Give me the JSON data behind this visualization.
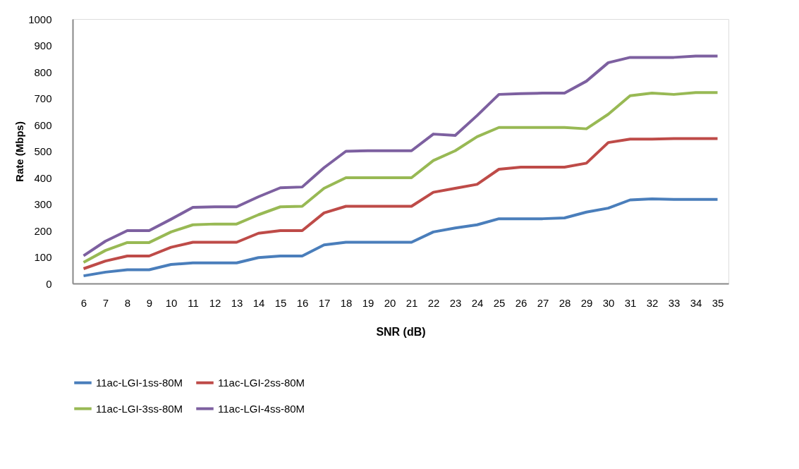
{
  "chart_data": {
    "type": "line",
    "xlabel": "SNR (dB)",
    "ylabel": "Rate (Mbps)",
    "categories": [
      "6",
      "7",
      "8",
      "9",
      "10",
      "11",
      "12",
      "13",
      "14",
      "15",
      "16",
      "17",
      "18",
      "19",
      "20",
      "21",
      "22",
      "23",
      "24",
      "25",
      "26",
      "27",
      "28",
      "29",
      "30",
      "31",
      "32",
      "33",
      "34",
      "35"
    ],
    "ylim": [
      0,
      1000
    ],
    "yticks": [
      0,
      100,
      200,
      300,
      400,
      500,
      600,
      700,
      800,
      900,
      1000
    ],
    "grid": false,
    "legend": "bottom",
    "marker": "none",
    "line_style": "solid",
    "series": [
      {
        "name": "11ac-LGI-1ss-80M",
        "color": "#4a7ebb",
        "values": [
          29,
          43,
          52,
          52,
          72,
          78,
          78,
          78,
          98,
          104,
          104,
          146,
          156,
          156,
          156,
          156,
          195,
          210,
          222,
          245,
          245,
          245,
          248,
          270,
          285,
          316,
          320,
          318,
          318,
          318
        ]
      },
      {
        "name": "11ac-LGI-2ss-80M",
        "color": "#be4b48",
        "values": [
          56,
          85,
          104,
          104,
          137,
          156,
          156,
          156,
          190,
          200,
          200,
          267,
          292,
          292,
          292,
          292,
          345,
          360,
          375,
          432,
          440,
          440,
          440,
          455,
          533,
          546,
          546,
          548,
          548,
          548
        ]
      },
      {
        "name": "11ac-LGI-3ss-80M",
        "color": "#98b954",
        "values": [
          80,
          125,
          155,
          155,
          195,
          222,
          225,
          225,
          260,
          290,
          292,
          360,
          400,
          400,
          400,
          400,
          465,
          502,
          555,
          590,
          590,
          590,
          590,
          585,
          640,
          710,
          720,
          715,
          722,
          722
        ]
      },
      {
        "name": "11ac-LGI-4ss-80M",
        "color": "#7d60a0",
        "values": [
          105,
          160,
          200,
          200,
          243,
          288,
          290,
          290,
          328,
          362,
          365,
          438,
          500,
          502,
          502,
          502,
          565,
          560,
          635,
          715,
          718,
          720,
          720,
          765,
          835,
          855,
          855,
          855,
          860,
          860
        ]
      }
    ]
  }
}
